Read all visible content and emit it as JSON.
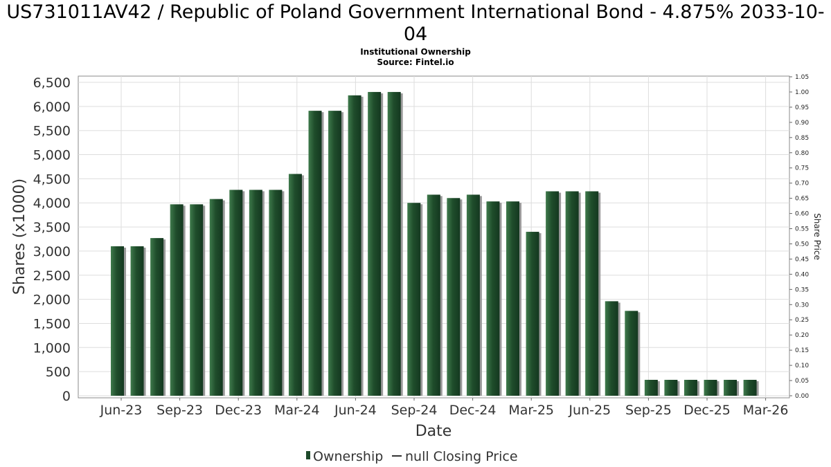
{
  "chart_data": {
    "type": "bar",
    "title": "US731011AV42 / Republic of Poland Government International Bond - 4.875% 2033-10-04",
    "subtitle_line1": "Institutional Ownership",
    "subtitle_line2": "Source: Fintel.io",
    "xlabel": "Date",
    "ylabel": "Shares (x1000)",
    "y2label": "Share Price",
    "ylim": [
      0,
      6500
    ],
    "y2lim": [
      0,
      1.05
    ],
    "grid": true,
    "y_ticks": [
      "0",
      "500",
      "1,000",
      "1,500",
      "2,000",
      "2,500",
      "3,000",
      "3,500",
      "4,000",
      "4,500",
      "5,000",
      "5,500",
      "6,000",
      "6,500"
    ],
    "y2_ticks": [
      "0.00",
      "0.05",
      "0.10",
      "0.15",
      "0.20",
      "0.25",
      "0.30",
      "0.35",
      "0.40",
      "0.45",
      "0.50",
      "0.55",
      "0.60",
      "0.65",
      "0.70",
      "0.75",
      "0.80",
      "0.85",
      "0.90",
      "0.95",
      "1.00",
      "1.05"
    ],
    "x_ticks": [
      "Jun-23",
      "Sep-23",
      "Dec-23",
      "Mar-24",
      "Jun-24",
      "Sep-24",
      "Dec-24",
      "Mar-25",
      "Jun-25",
      "Sep-25",
      "Dec-25",
      "Mar-26"
    ],
    "series": [
      {
        "name": "Ownership",
        "color": "#1e4a2a",
        "values": [
          3100,
          3100,
          3270,
          3970,
          3970,
          4080,
          4270,
          4270,
          4270,
          4600,
          5910,
          5910,
          6230,
          6300,
          6300,
          4000,
          4170,
          4100,
          4170,
          4030,
          4030,
          3400,
          4240,
          4240,
          4240,
          1960,
          1760,
          330,
          330,
          330,
          330,
          330,
          330
        ]
      },
      {
        "name": "null Closing Price",
        "color": "#333333",
        "values": []
      }
    ],
    "legend_position": "bottom-center"
  }
}
